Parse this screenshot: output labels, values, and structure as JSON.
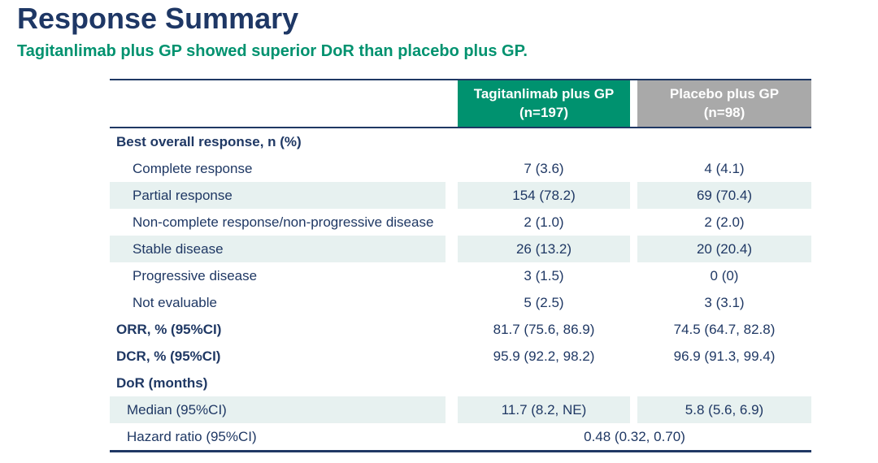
{
  "page": {
    "title": "Response Summary",
    "subtitle": "Tagitanlimab plus GP showed superior DoR than placebo plus GP."
  },
  "colors": {
    "title_navy": "#1E3765",
    "subtitle_green": "#00926F",
    "header_green": "#00926F",
    "header_gray": "#A9A9A9",
    "row_stripe": "#E7F1F0",
    "table_text_navy": "#1F3864",
    "border_navy": "#1F3864"
  },
  "table": {
    "columns": [
      {
        "label": "Tagitanlimab plus GP",
        "n": "(n=197)"
      },
      {
        "label": "Placebo plus GP",
        "n": "(n=98)"
      }
    ],
    "rows": [
      {
        "label": "Best overall response, n (%)",
        "col1": "",
        "col2": ""
      },
      {
        "label": "Complete response",
        "col1": "7 (3.6)",
        "col2": "4 (4.1)"
      },
      {
        "label": "Partial response",
        "col1": "154 (78.2)",
        "col2": "69 (70.4)"
      },
      {
        "label": "Non-complete response/non-progressive disease",
        "col1": "2 (1.0)",
        "col2": "2 (2.0)"
      },
      {
        "label": "Stable disease",
        "col1": "26 (13.2)",
        "col2": "20 (20.4)"
      },
      {
        "label": "Progressive disease",
        "col1": "3 (1.5)",
        "col2": "0 (0)"
      },
      {
        "label": "Not evaluable",
        "col1": "5 (2.5)",
        "col2": "3 (3.1)"
      },
      {
        "label": "ORR, % (95%CI)",
        "col1": "81.7 (75.6, 86.9)",
        "col2": "74.5 (64.7, 82.8)"
      },
      {
        "label": "DCR, % (95%CI)",
        "col1": "95.9 (92.2, 98.2)",
        "col2": "96.9 (91.3, 99.4)"
      },
      {
        "label": "DoR (months)",
        "col1": "",
        "col2": ""
      },
      {
        "label": "Median (95%CI)",
        "col1": "11.7 (8.2, NE)",
        "col2": "5.8 (5.6, 6.9)"
      },
      {
        "label": "Hazard ratio (95%CI)",
        "span": "0.48 (0.32, 0.70)"
      }
    ]
  }
}
